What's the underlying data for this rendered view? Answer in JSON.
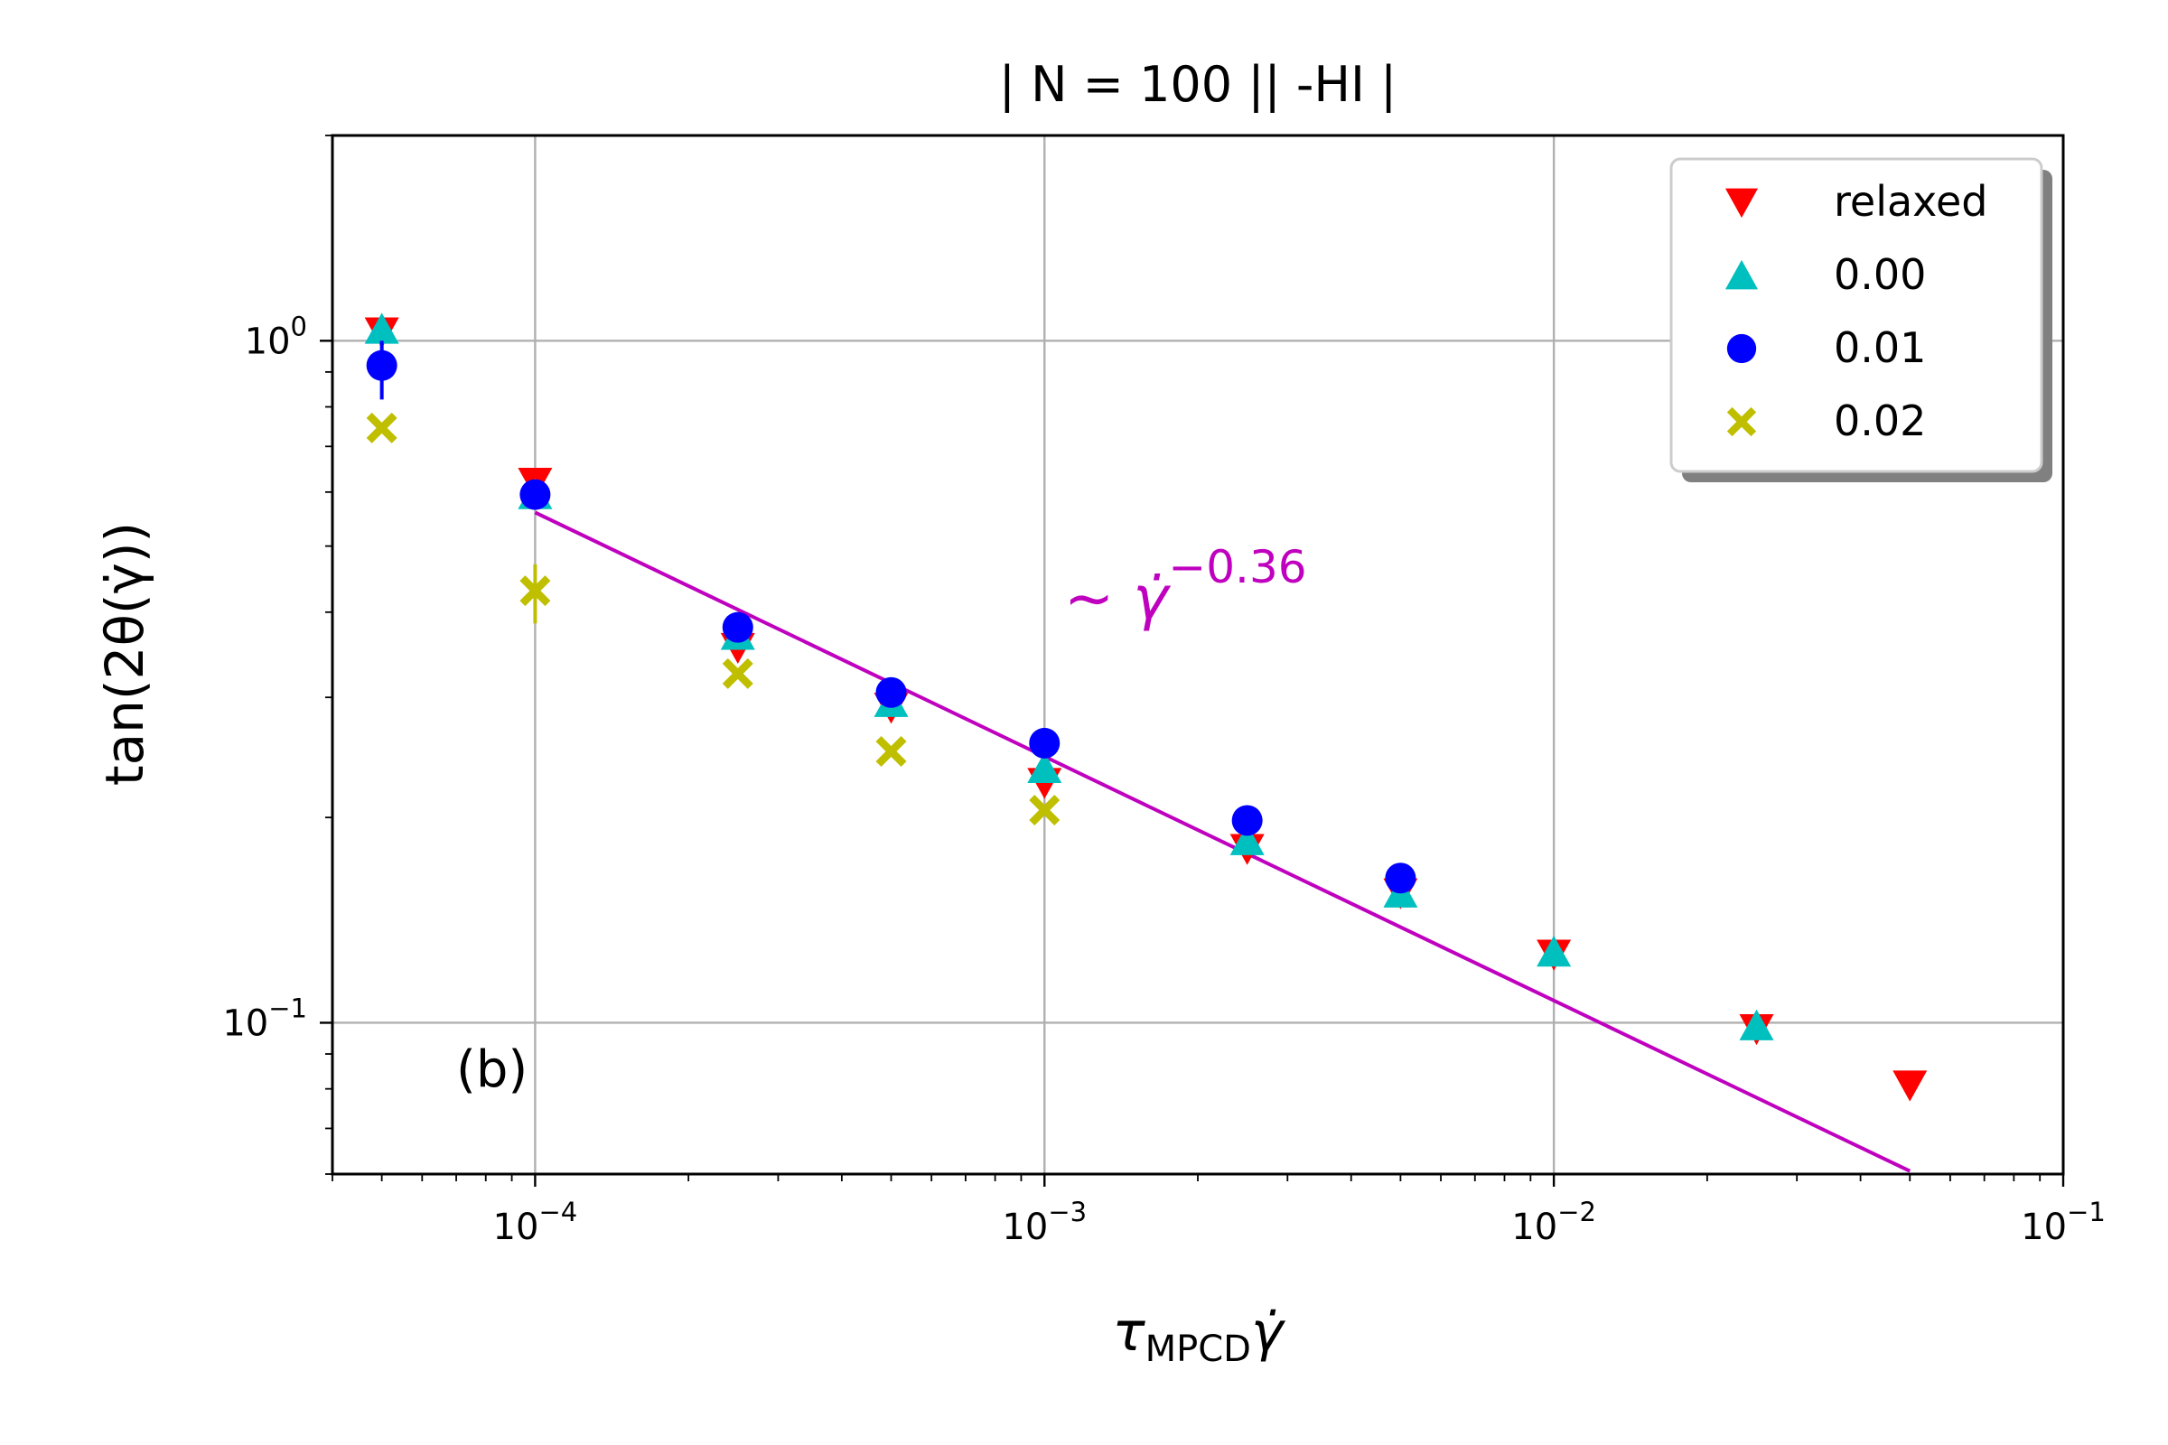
{
  "chart_data": {
    "type": "scatter",
    "title": "| N = 100 || -HI  |",
    "xlabel": "τMPCDγ̇",
    "xlabel_main": "τ",
    "xlabel_sub": "MPCD",
    "xlabel_tail": "γ̇",
    "ylabel": "tan(2θ(γ̇))",
    "xscale": "log",
    "yscale": "log",
    "xlim": [
      4e-05,
      0.1
    ],
    "ylim": [
      0.06,
      2.0
    ],
    "grid": true,
    "panel_label": "(b)",
    "x_ticks": [
      {
        "value": 0.0001,
        "base": "10",
        "exp": "−4"
      },
      {
        "value": 0.001,
        "base": "10",
        "exp": "−3"
      },
      {
        "value": 0.01,
        "base": "10",
        "exp": "−2"
      },
      {
        "value": 0.1,
        "base": "10",
        "exp": "−1"
      }
    ],
    "y_ticks": [
      {
        "value": 0.1,
        "base": "10",
        "exp": "−1"
      },
      {
        "value": 1,
        "base": "10",
        "exp": "0"
      }
    ],
    "legend": {
      "position": "top-right"
    },
    "series": [
      {
        "name": "relaxed",
        "marker": "triangle-down",
        "color": "#ff0000",
        "points": [
          [
            5e-05,
            1.03
          ],
          [
            0.0001,
            0.62
          ],
          [
            0.00025,
            0.355
          ],
          [
            0.0005,
            0.29
          ],
          [
            0.001,
            0.225
          ],
          [
            0.0025,
            0.18
          ],
          [
            0.005,
            0.155
          ],
          [
            0.01,
            0.126
          ],
          [
            0.025,
            0.098
          ],
          [
            0.05,
            0.081
          ]
        ]
      },
      {
        "name": "0.00",
        "marker": "triangle-up",
        "color": "#00bfbf",
        "points": [
          [
            5e-05,
            1.04
          ],
          [
            0.0001,
            0.595
          ],
          [
            0.00025,
            0.37
          ],
          [
            0.0005,
            0.295
          ],
          [
            0.001,
            0.236
          ],
          [
            0.0025,
            0.185
          ],
          [
            0.005,
            0.155
          ],
          [
            0.01,
            0.127
          ],
          [
            0.025,
            0.099
          ]
        ]
      },
      {
        "name": "0.01",
        "marker": "circle",
        "color": "#0000ff",
        "points": [
          [
            5e-05,
            0.92
          ],
          [
            0.0001,
            0.595
          ],
          [
            0.00025,
            0.38
          ],
          [
            0.0005,
            0.305
          ],
          [
            0.001,
            0.257
          ],
          [
            0.0025,
            0.198
          ],
          [
            0.005,
            0.163
          ]
        ],
        "yerr": [
          [
            0.82,
            1.0
          ],
          null,
          null,
          null,
          null,
          null,
          null
        ]
      },
      {
        "name": "0.02",
        "marker": "x-filled",
        "color": "#bfbf00",
        "points": [
          [
            5e-05,
            0.745
          ],
          [
            0.0001,
            0.43
          ],
          [
            0.00025,
            0.325
          ],
          [
            0.0005,
            0.25
          ],
          [
            0.001,
            0.205
          ]
        ],
        "yerr": [
          null,
          [
            0.385,
            0.47
          ],
          null,
          null,
          null
        ]
      }
    ],
    "fit": {
      "color": "#bf00bf",
      "label_prefix": "∼ γ̇",
      "label_exp": "−0.36",
      "x": [
        0.0001,
        0.05
      ],
      "y": [
        0.56,
        0.0606
      ]
    }
  }
}
